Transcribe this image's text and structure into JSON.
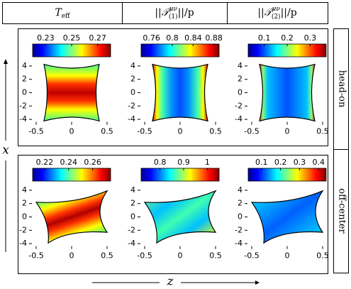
{
  "column_headers": [
    {
      "base": "T",
      "sub": "eff"
    },
    {
      "base": "||𝒯",
      "sup": "μν",
      "sub": "(1)",
      "tail": "||/p"
    },
    {
      "base": "||𝒯",
      "sup": "μν",
      "sub": "(2)",
      "tail": "||/p"
    }
  ],
  "row_labels": [
    "head-on",
    "off-center"
  ],
  "x_label": "z",
  "y_label": "x",
  "chart_data": [
    {
      "type": "heatmap",
      "row": 0,
      "col": 0,
      "shape": "head-on",
      "colorbar_lim": [
        0.22,
        0.28
      ],
      "colorbar_ticks": [
        0.23,
        0.25,
        0.27
      ],
      "xlim": [
        -0.6,
        0.6
      ],
      "xticks": [
        -0.5,
        0,
        0.5
      ],
      "ylim": [
        -4.8,
        4.8
      ],
      "yticks": [
        4,
        2,
        0,
        -2,
        -4
      ]
    },
    {
      "type": "heatmap",
      "row": 0,
      "col": 1,
      "shape": "head-on",
      "colorbar_lim": [
        0.74,
        0.89
      ],
      "colorbar_ticks": [
        0.76,
        0.8,
        0.84,
        0.88
      ],
      "xlim": [
        -0.6,
        0.6
      ],
      "xticks": [
        -0.5,
        0,
        0.5
      ],
      "ylim": [
        -4.8,
        4.8
      ],
      "yticks": [
        4,
        2,
        0,
        -2,
        -4
      ]
    },
    {
      "type": "heatmap",
      "row": 0,
      "col": 2,
      "shape": "head-on",
      "colorbar_lim": [
        0.03,
        0.37
      ],
      "colorbar_ticks": [
        0.1,
        0.2,
        0.3
      ],
      "xlim": [
        -0.6,
        0.6
      ],
      "xticks": [
        -0.5,
        0,
        0.5
      ],
      "ylim": [
        -4.8,
        4.8
      ],
      "yticks": [
        4,
        2,
        0,
        -2,
        -4
      ]
    },
    {
      "type": "heatmap",
      "row": 1,
      "col": 0,
      "shape": "off-center",
      "colorbar_lim": [
        0.21,
        0.275
      ],
      "colorbar_ticks": [
        0.22,
        0.24,
        0.26
      ],
      "xlim": [
        -0.6,
        0.6
      ],
      "xticks": [
        -0.5,
        0,
        0.5
      ],
      "ylim": [
        -4.8,
        4.8
      ],
      "yticks": [
        4,
        2,
        0,
        -2,
        -4
      ]
    },
    {
      "type": "heatmap",
      "row": 1,
      "col": 1,
      "shape": "off-center",
      "colorbar_lim": [
        0.72,
        1.05
      ],
      "colorbar_ticks": [
        0.8,
        0.9,
        1
      ],
      "xlim": [
        -0.6,
        0.6
      ],
      "xticks": [
        -0.5,
        0,
        0.5
      ],
      "ylim": [
        -4.8,
        4.8
      ],
      "yticks": [
        4,
        2,
        0,
        -2,
        -4
      ]
    },
    {
      "type": "heatmap",
      "row": 1,
      "col": 2,
      "shape": "off-center",
      "colorbar_lim": [
        0.03,
        0.44
      ],
      "colorbar_ticks": [
        0.1,
        0.2,
        0.3,
        0.4
      ],
      "xlim": [
        -0.6,
        0.6
      ],
      "xticks": [
        -0.5,
        0,
        0.5
      ],
      "ylim": [
        -4.8,
        4.8
      ],
      "yticks": [
        4,
        2,
        0,
        -2,
        -4
      ]
    }
  ]
}
